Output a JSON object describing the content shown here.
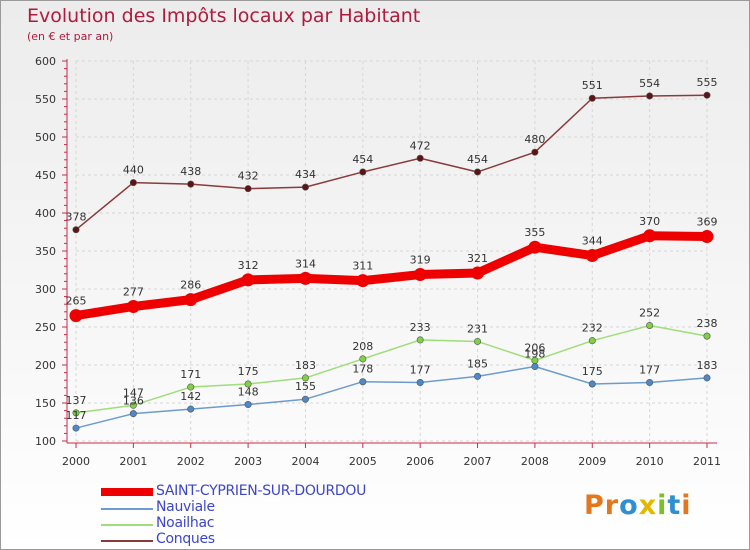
{
  "title": "Evolution des Impôts locaux par Habitant",
  "subtitle": "(en € et par an)",
  "logo": {
    "text": "Proxiti",
    "letter_colors": [
      "#e4761b",
      "#e4761b",
      "#2f8fd0",
      "#e2b900",
      "#7cbf2a",
      "#2f8fd0",
      "#e4761b"
    ]
  },
  "chart_data": {
    "type": "line",
    "categories": [
      "2000",
      "2001",
      "2002",
      "2003",
      "2004",
      "2005",
      "2006",
      "2007",
      "2008",
      "2009",
      "2010",
      "2011"
    ],
    "ylim": [
      100,
      600
    ],
    "yticks": [
      "100",
      "150",
      "200",
      "250",
      "300",
      "350",
      "400",
      "450",
      "500",
      "550",
      "600"
    ],
    "grid": true,
    "series": [
      {
        "name": "SAINT-CYPRIEN-SUR-DOURDOU",
        "color": "#ee0000",
        "values": [
          265,
          277,
          286,
          312,
          314,
          311,
          319,
          321,
          355,
          344,
          370,
          369
        ]
      },
      {
        "name": "Nauviale",
        "color": "#6d9bcf",
        "values": [
          117,
          136,
          142,
          148,
          155,
          178,
          177,
          185,
          198,
          175,
          177,
          183
        ]
      },
      {
        "name": "Noailhac",
        "color": "#9fdd7a",
        "values": [
          137,
          147,
          171,
          175,
          183,
          208,
          233,
          231,
          206,
          232,
          252,
          238
        ]
      },
      {
        "name": "Conques",
        "color": "#8b3a3a",
        "values": [
          378,
          440,
          438,
          432,
          434,
          454,
          472,
          454,
          480,
          551,
          554,
          555
        ]
      }
    ]
  }
}
